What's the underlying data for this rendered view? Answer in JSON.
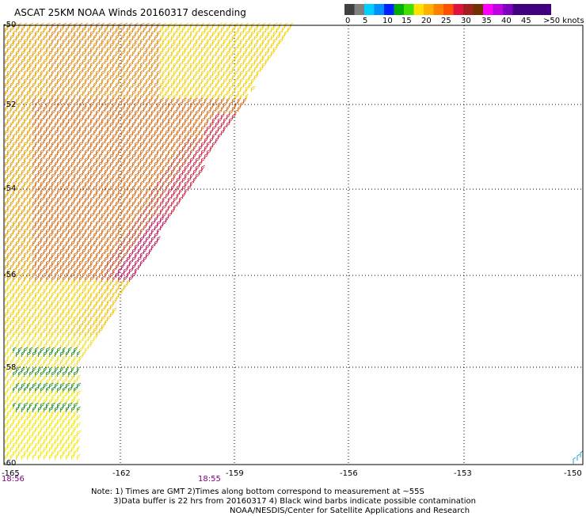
{
  "title": "ASCAT 25KM NOAA Winds 20160317 descending",
  "legend": {
    "colors": [
      "#404040",
      "#808080",
      "#00d0ff",
      "#0090ff",
      "#0020ff",
      "#00b000",
      "#40e000",
      "#ffe000",
      "#ffb000",
      "#ff8000",
      "#ff5000",
      "#e01040",
      "#a02020",
      "#703000",
      "#ff00ff",
      "#c000e0",
      "#8000c0",
      "#400080"
    ],
    "labels": [
      "0",
      "5",
      "10",
      "15",
      "20",
      "25",
      "30",
      "35",
      "40",
      "45",
      ">50 knots"
    ]
  },
  "axes": {
    "lon_labels": [
      "-165",
      "-162",
      "-159",
      "-156",
      "-153",
      "-150"
    ],
    "lat_labels": [
      "-50",
      "-52",
      "-54",
      "-56",
      "-58",
      "-60"
    ]
  },
  "timestamps": [
    "18:56",
    "18:55"
  ],
  "notes": [
    "Note: 1) Times are GMT 2)Times along bottom correspond to measurement at ~55S",
    "3)Data buffer is 22 hrs from 20160317 4) Black wind barbs indicate possible contamination",
    "NOAA/NESDIS/Center for Satellite Applications and Research"
  ],
  "icons": {
    "wind_barb": "wind-barb-icon"
  }
}
